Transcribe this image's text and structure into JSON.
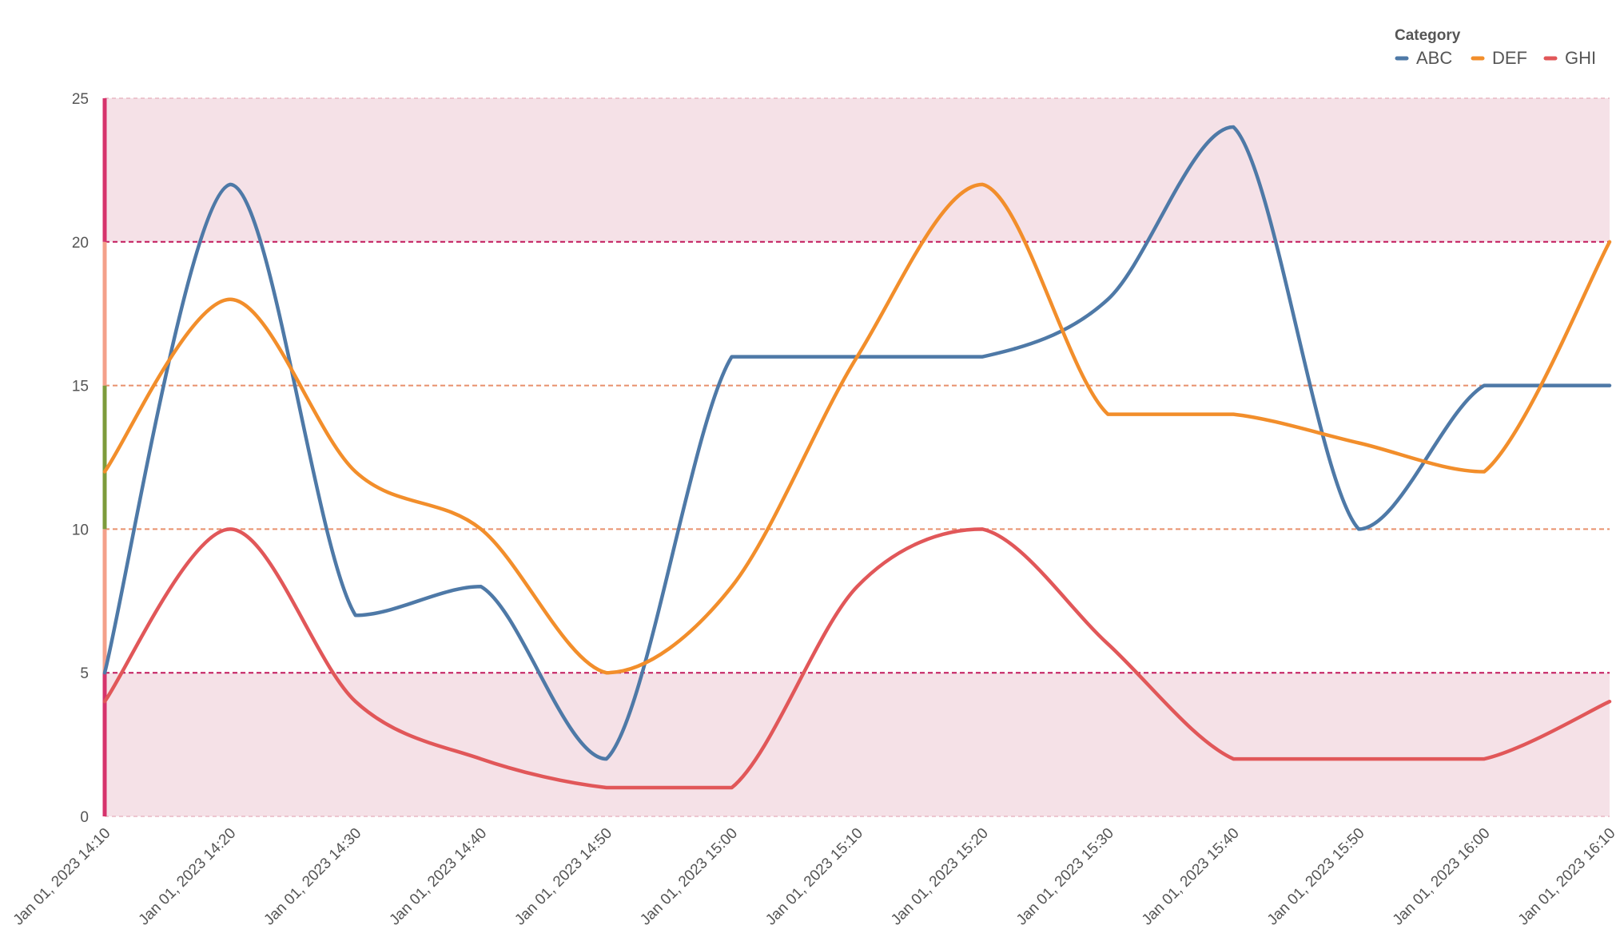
{
  "chart_data": {
    "type": "line",
    "legend": {
      "title": "Category",
      "position": "top-right"
    },
    "x": [
      "Jan 01, 2023 14:10",
      "Jan 01, 2023 14:20",
      "Jan 01, 2023 14:30",
      "Jan 01, 2023 14:40",
      "Jan 01, 2023 14:50",
      "Jan 01, 2023 15:00",
      "Jan 01, 2023 15:10",
      "Jan 01, 2023 15:20",
      "Jan 01, 2023 15:30",
      "Jan 01, 2023 15:40",
      "Jan 01, 2023 15:50",
      "Jan 01, 2023 16:00",
      "Jan 01, 2023 16:10"
    ],
    "series": [
      {
        "name": "ABC",
        "color": "#4e79a7",
        "values": [
          5,
          22,
          7,
          8,
          2,
          16,
          16,
          16,
          18,
          24,
          10,
          15,
          15
        ]
      },
      {
        "name": "DEF",
        "color": "#f28e2b",
        "values": [
          12,
          18,
          12,
          10,
          5,
          8,
          16,
          22,
          14,
          14,
          13,
          12,
          20
        ]
      },
      {
        "name": "GHI",
        "color": "#e15759",
        "values": [
          4,
          10,
          4,
          2,
          1,
          1,
          8,
          10,
          6,
          2,
          2,
          2,
          4
        ]
      }
    ],
    "ylim": [
      0,
      25
    ],
    "yticks": [
      "0",
      "5",
      "10",
      "15",
      "20",
      "25"
    ],
    "bands": [
      {
        "from": 20,
        "to": 25,
        "color": "#f5e1e7"
      },
      {
        "from": 0,
        "to": 5,
        "color": "#f5e1e7"
      }
    ],
    "reference_lines": [
      {
        "value": 20,
        "color": "#c2185b"
      },
      {
        "value": 15,
        "color": "#e8906c"
      },
      {
        "value": 10,
        "color": "#e8906c"
      },
      {
        "value": 5,
        "color": "#c2185b"
      }
    ],
    "left_indicator": [
      {
        "from": 0,
        "to": 5,
        "color": "#d6336c"
      },
      {
        "from": 5,
        "to": 10,
        "color": "#f4a08a"
      },
      {
        "from": 10,
        "to": 15,
        "color": "#7d9b3b"
      },
      {
        "from": 15,
        "to": 20,
        "color": "#f4a08a"
      },
      {
        "from": 20,
        "to": 25,
        "color": "#d6336c"
      }
    ],
    "grid": false
  }
}
